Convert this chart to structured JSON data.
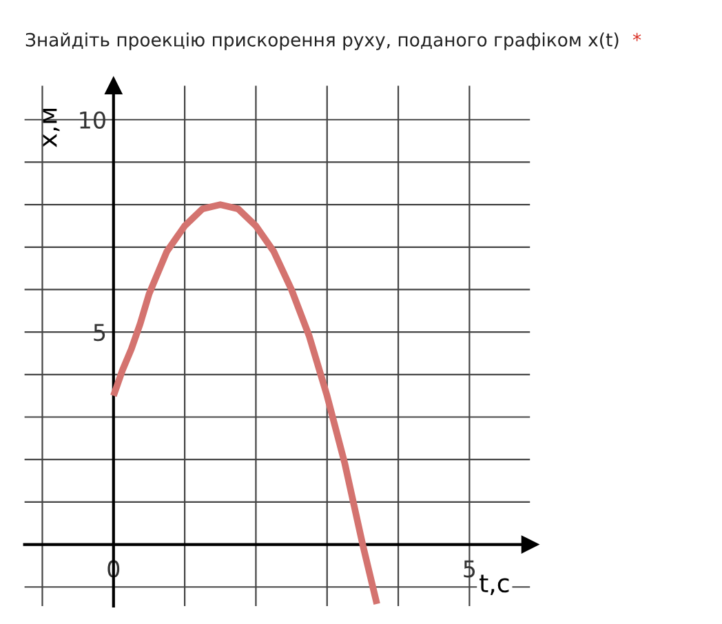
{
  "chart_data": {
    "type": "line",
    "title": "Знайдіть проекцію прискорення руху, поданого графіком x(t)",
    "annotations": [
      "*"
    ],
    "xlabel": "t,c",
    "ylabel": "x,м",
    "x": [
      0,
      0.125,
      0.25,
      0.375,
      0.5,
      0.75,
      1,
      1.25,
      1.5,
      1.75,
      2,
      2.25,
      2.5,
      2.75,
      3,
      3.25,
      3.5,
      3.7
    ],
    "series": [
      {
        "color": "#d4736f",
        "values": [
          3.5,
          4.1,
          4.6,
          5.2,
          5.9,
          6.9,
          7.5,
          7.9,
          8,
          7.9,
          7.5,
          6.9,
          6,
          4.9,
          3.5,
          1.9,
          0,
          -1.4
        ]
      }
    ],
    "xlim": [
      -1.25,
      5.85
    ],
    "ylim": [
      -1.45,
      10.8
    ],
    "xticks": [
      {
        "value": -1,
        "label": null
      },
      0,
      {
        "value": 1,
        "label": null
      },
      {
        "value": 2,
        "label": null
      },
      {
        "value": 3,
        "label": null
      },
      {
        "value": 4,
        "label": null
      },
      5
    ],
    "yticks": [
      {
        "value": -1,
        "label": null
      },
      {
        "value": 1,
        "label": null
      },
      {
        "value": 2,
        "label": null
      },
      {
        "value": 3,
        "label": null
      },
      {
        "value": 4,
        "label": null
      },
      5,
      {
        "value": 6,
        "label": null
      },
      {
        "value": 7,
        "label": null
      },
      {
        "value": 8,
        "label": null
      },
      {
        "value": 9,
        "label": null
      },
      10
    ],
    "grid": true,
    "legend": false,
    "marker": "none",
    "line_style": "solid"
  }
}
